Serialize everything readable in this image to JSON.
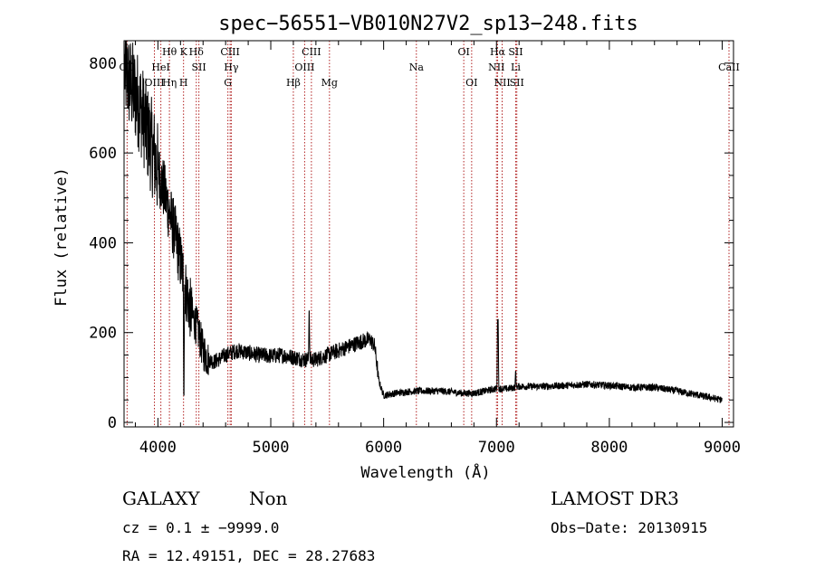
{
  "chart_data": {
    "type": "line",
    "title": "spec−56551−VB010N27V2_sp13−248.fits",
    "xlabel": "Wavelength (Å)",
    "ylabel": "Flux (relative)",
    "xlim": [
      3700,
      9100
    ],
    "ylim": [
      -10,
      850
    ],
    "xticks": [
      4000,
      5000,
      6000,
      7000,
      8000,
      9000
    ],
    "yticks": [
      0,
      200,
      400,
      600,
      800
    ],
    "grid": false,
    "line_color": "#000000",
    "marker_line_color": "#b22222",
    "spectrum_profile": [
      {
        "x": 3700,
        "y": 790
      },
      {
        "x": 3740,
        "y": 760
      },
      {
        "x": 3780,
        "y": 740
      },
      {
        "x": 3820,
        "y": 720
      },
      {
        "x": 3860,
        "y": 690
      },
      {
        "x": 3900,
        "y": 650
      },
      {
        "x": 3950,
        "y": 610
      },
      {
        "x": 4000,
        "y": 560
      },
      {
        "x": 4050,
        "y": 520
      },
      {
        "x": 4100,
        "y": 470
      },
      {
        "x": 4150,
        "y": 420
      },
      {
        "x": 4200,
        "y": 360
      },
      {
        "x": 4250,
        "y": 290
      },
      {
        "x": 4300,
        "y": 240
      },
      {
        "x": 4350,
        "y": 210
      },
      {
        "x": 4400,
        "y": 160
      },
      {
        "x": 4450,
        "y": 140
      },
      {
        "x": 4500,
        "y": 135
      },
      {
        "x": 4600,
        "y": 150
      },
      {
        "x": 4700,
        "y": 160
      },
      {
        "x": 4800,
        "y": 155
      },
      {
        "x": 4900,
        "y": 150
      },
      {
        "x": 5000,
        "y": 148
      },
      {
        "x": 5100,
        "y": 150
      },
      {
        "x": 5200,
        "y": 145
      },
      {
        "x": 5300,
        "y": 140
      },
      {
        "x": 5400,
        "y": 140
      },
      {
        "x": 5500,
        "y": 150
      },
      {
        "x": 5600,
        "y": 160
      },
      {
        "x": 5700,
        "y": 170
      },
      {
        "x": 5800,
        "y": 180
      },
      {
        "x": 5880,
        "y": 185
      },
      {
        "x": 5920,
        "y": 170
      },
      {
        "x": 5960,
        "y": 90
      },
      {
        "x": 6000,
        "y": 60
      },
      {
        "x": 6100,
        "y": 65
      },
      {
        "x": 6200,
        "y": 68
      },
      {
        "x": 6300,
        "y": 70
      },
      {
        "x": 6400,
        "y": 70
      },
      {
        "x": 6500,
        "y": 70
      },
      {
        "x": 6600,
        "y": 68
      },
      {
        "x": 6700,
        "y": 65
      },
      {
        "x": 6800,
        "y": 65
      },
      {
        "x": 6900,
        "y": 70
      },
      {
        "x": 7000,
        "y": 75
      },
      {
        "x": 7100,
        "y": 75
      },
      {
        "x": 7200,
        "y": 80
      },
      {
        "x": 7400,
        "y": 80
      },
      {
        "x": 7600,
        "y": 82
      },
      {
        "x": 7800,
        "y": 85
      },
      {
        "x": 8000,
        "y": 82
      },
      {
        "x": 8200,
        "y": 78
      },
      {
        "x": 8400,
        "y": 78
      },
      {
        "x": 8600,
        "y": 70
      },
      {
        "x": 8800,
        "y": 60
      },
      {
        "x": 9000,
        "y": 50
      }
    ],
    "spikes": [
      {
        "x": 4230,
        "y": 20
      },
      {
        "x": 5340,
        "y": 270
      },
      {
        "x": 7010,
        "y": 260
      },
      {
        "x": 7015,
        "y": 230
      },
      {
        "x": 7170,
        "y": 120
      },
      {
        "x": 9005,
        "y": 20
      }
    ],
    "lines": [
      {
        "x": 3727,
        "label": "OII",
        "row": 1
      },
      {
        "x": 3969,
        "label": "OIII",
        "row": 2
      },
      {
        "x": 4102,
        "label": "Hθ",
        "row": 0
      },
      {
        "x": 4026,
        "label": "HeI",
        "row": 1
      },
      {
        "x": 4102,
        "label": "Hη",
        "row": 2
      },
      {
        "x": 4227,
        "label": "K",
        "row": 0
      },
      {
        "x": 4227,
        "label": "H",
        "row": 2
      },
      {
        "x": 4340,
        "label": "Hδ",
        "row": 0
      },
      {
        "x": 4363,
        "label": "SII",
        "row": 1
      },
      {
        "x": 4640,
        "label": "CIII",
        "row": 0
      },
      {
        "x": 4650,
        "label": "Hγ",
        "row": 1
      },
      {
        "x": 4620,
        "label": "G",
        "row": 2
      },
      {
        "x": 5200,
        "label": "Hβ",
        "row": 2
      },
      {
        "x": 5360,
        "label": "CIII",
        "row": 0
      },
      {
        "x": 5300,
        "label": "OIII",
        "row": 1
      },
      {
        "x": 5520,
        "label": "Mg",
        "row": 2
      },
      {
        "x": 6290,
        "label": "Na",
        "row": 1
      },
      {
        "x": 6710,
        "label": "OI",
        "row": 0
      },
      {
        "x": 6780,
        "label": "OI",
        "row": 2
      },
      {
        "x": 7010,
        "label": "Hα",
        "row": 0
      },
      {
        "x": 7000,
        "label": "NII",
        "row": 1
      },
      {
        "x": 7050,
        "label": "NII",
        "row": 2
      },
      {
        "x": 7170,
        "label": "SII",
        "row": 0
      },
      {
        "x": 7170,
        "label": "Li",
        "row": 1
      },
      {
        "x": 7180,
        "label": "SII",
        "row": 2
      },
      {
        "x": 9060,
        "label": "CaII",
        "row": 1
      }
    ]
  },
  "info": {
    "class": "GALAXY",
    "subclass": "Non",
    "survey": "LAMOST DR3",
    "cz_line": "cz = 0.1 ± −9999.0",
    "obs_date": "Obs−Date: 20130915",
    "radec_line": "RA =  12.49151, DEC =  28.27683"
  }
}
